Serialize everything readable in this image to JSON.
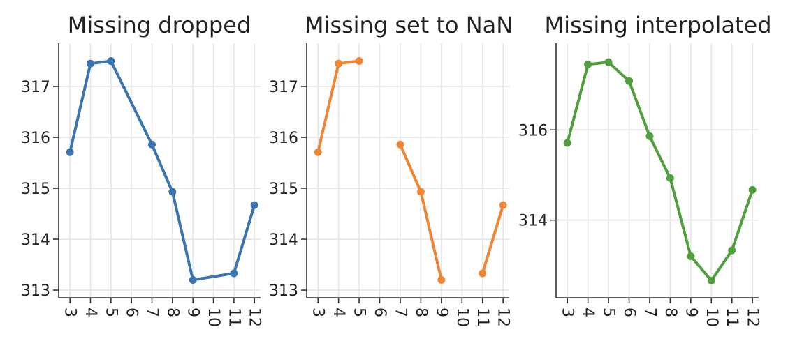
{
  "chart_data": [
    {
      "type": "line",
      "title": "Missing dropped",
      "color": "#3b75af",
      "x": [
        3,
        4,
        5,
        7,
        8,
        9,
        11,
        12
      ],
      "y": [
        315.71,
        317.45,
        317.5,
        315.86,
        314.93,
        313.2,
        313.33,
        314.67
      ],
      "xticks": [
        3,
        4,
        5,
        6,
        7,
        8,
        9,
        10,
        11,
        12
      ],
      "yticks": [
        313,
        314,
        315,
        316,
        317
      ],
      "ylim": [
        312.85,
        317.85
      ],
      "xlim": [
        2.45,
        12.3
      ],
      "grid": true
    },
    {
      "type": "line",
      "title": "Missing set to NaN",
      "color": "#ef8636",
      "x": [
        3,
        4,
        5,
        6,
        7,
        8,
        9,
        10,
        11,
        12
      ],
      "y": [
        315.71,
        317.45,
        317.5,
        null,
        315.86,
        314.93,
        313.2,
        null,
        313.33,
        314.67
      ],
      "xticks": [
        3,
        4,
        5,
        6,
        7,
        8,
        9,
        10,
        11,
        12
      ],
      "yticks": [
        313,
        314,
        315,
        316,
        317
      ],
      "ylim": [
        312.85,
        317.85
      ],
      "xlim": [
        2.45,
        12.3
      ],
      "grid": true
    },
    {
      "type": "line",
      "title": "Missing interpolated",
      "color": "#519e3e",
      "x": [
        3,
        4,
        5,
        6,
        7,
        8,
        9,
        10,
        11,
        12
      ],
      "y": [
        315.71,
        317.45,
        317.5,
        317.08,
        315.86,
        314.93,
        313.2,
        312.66,
        313.33,
        314.67
      ],
      "xticks": [
        3,
        4,
        5,
        6,
        7,
        8,
        9,
        10,
        11,
        12
      ],
      "yticks": [
        314,
        316
      ],
      "ylim": [
        312.28,
        317.92
      ],
      "xlim": [
        2.45,
        12.3
      ],
      "grid": true
    }
  ]
}
